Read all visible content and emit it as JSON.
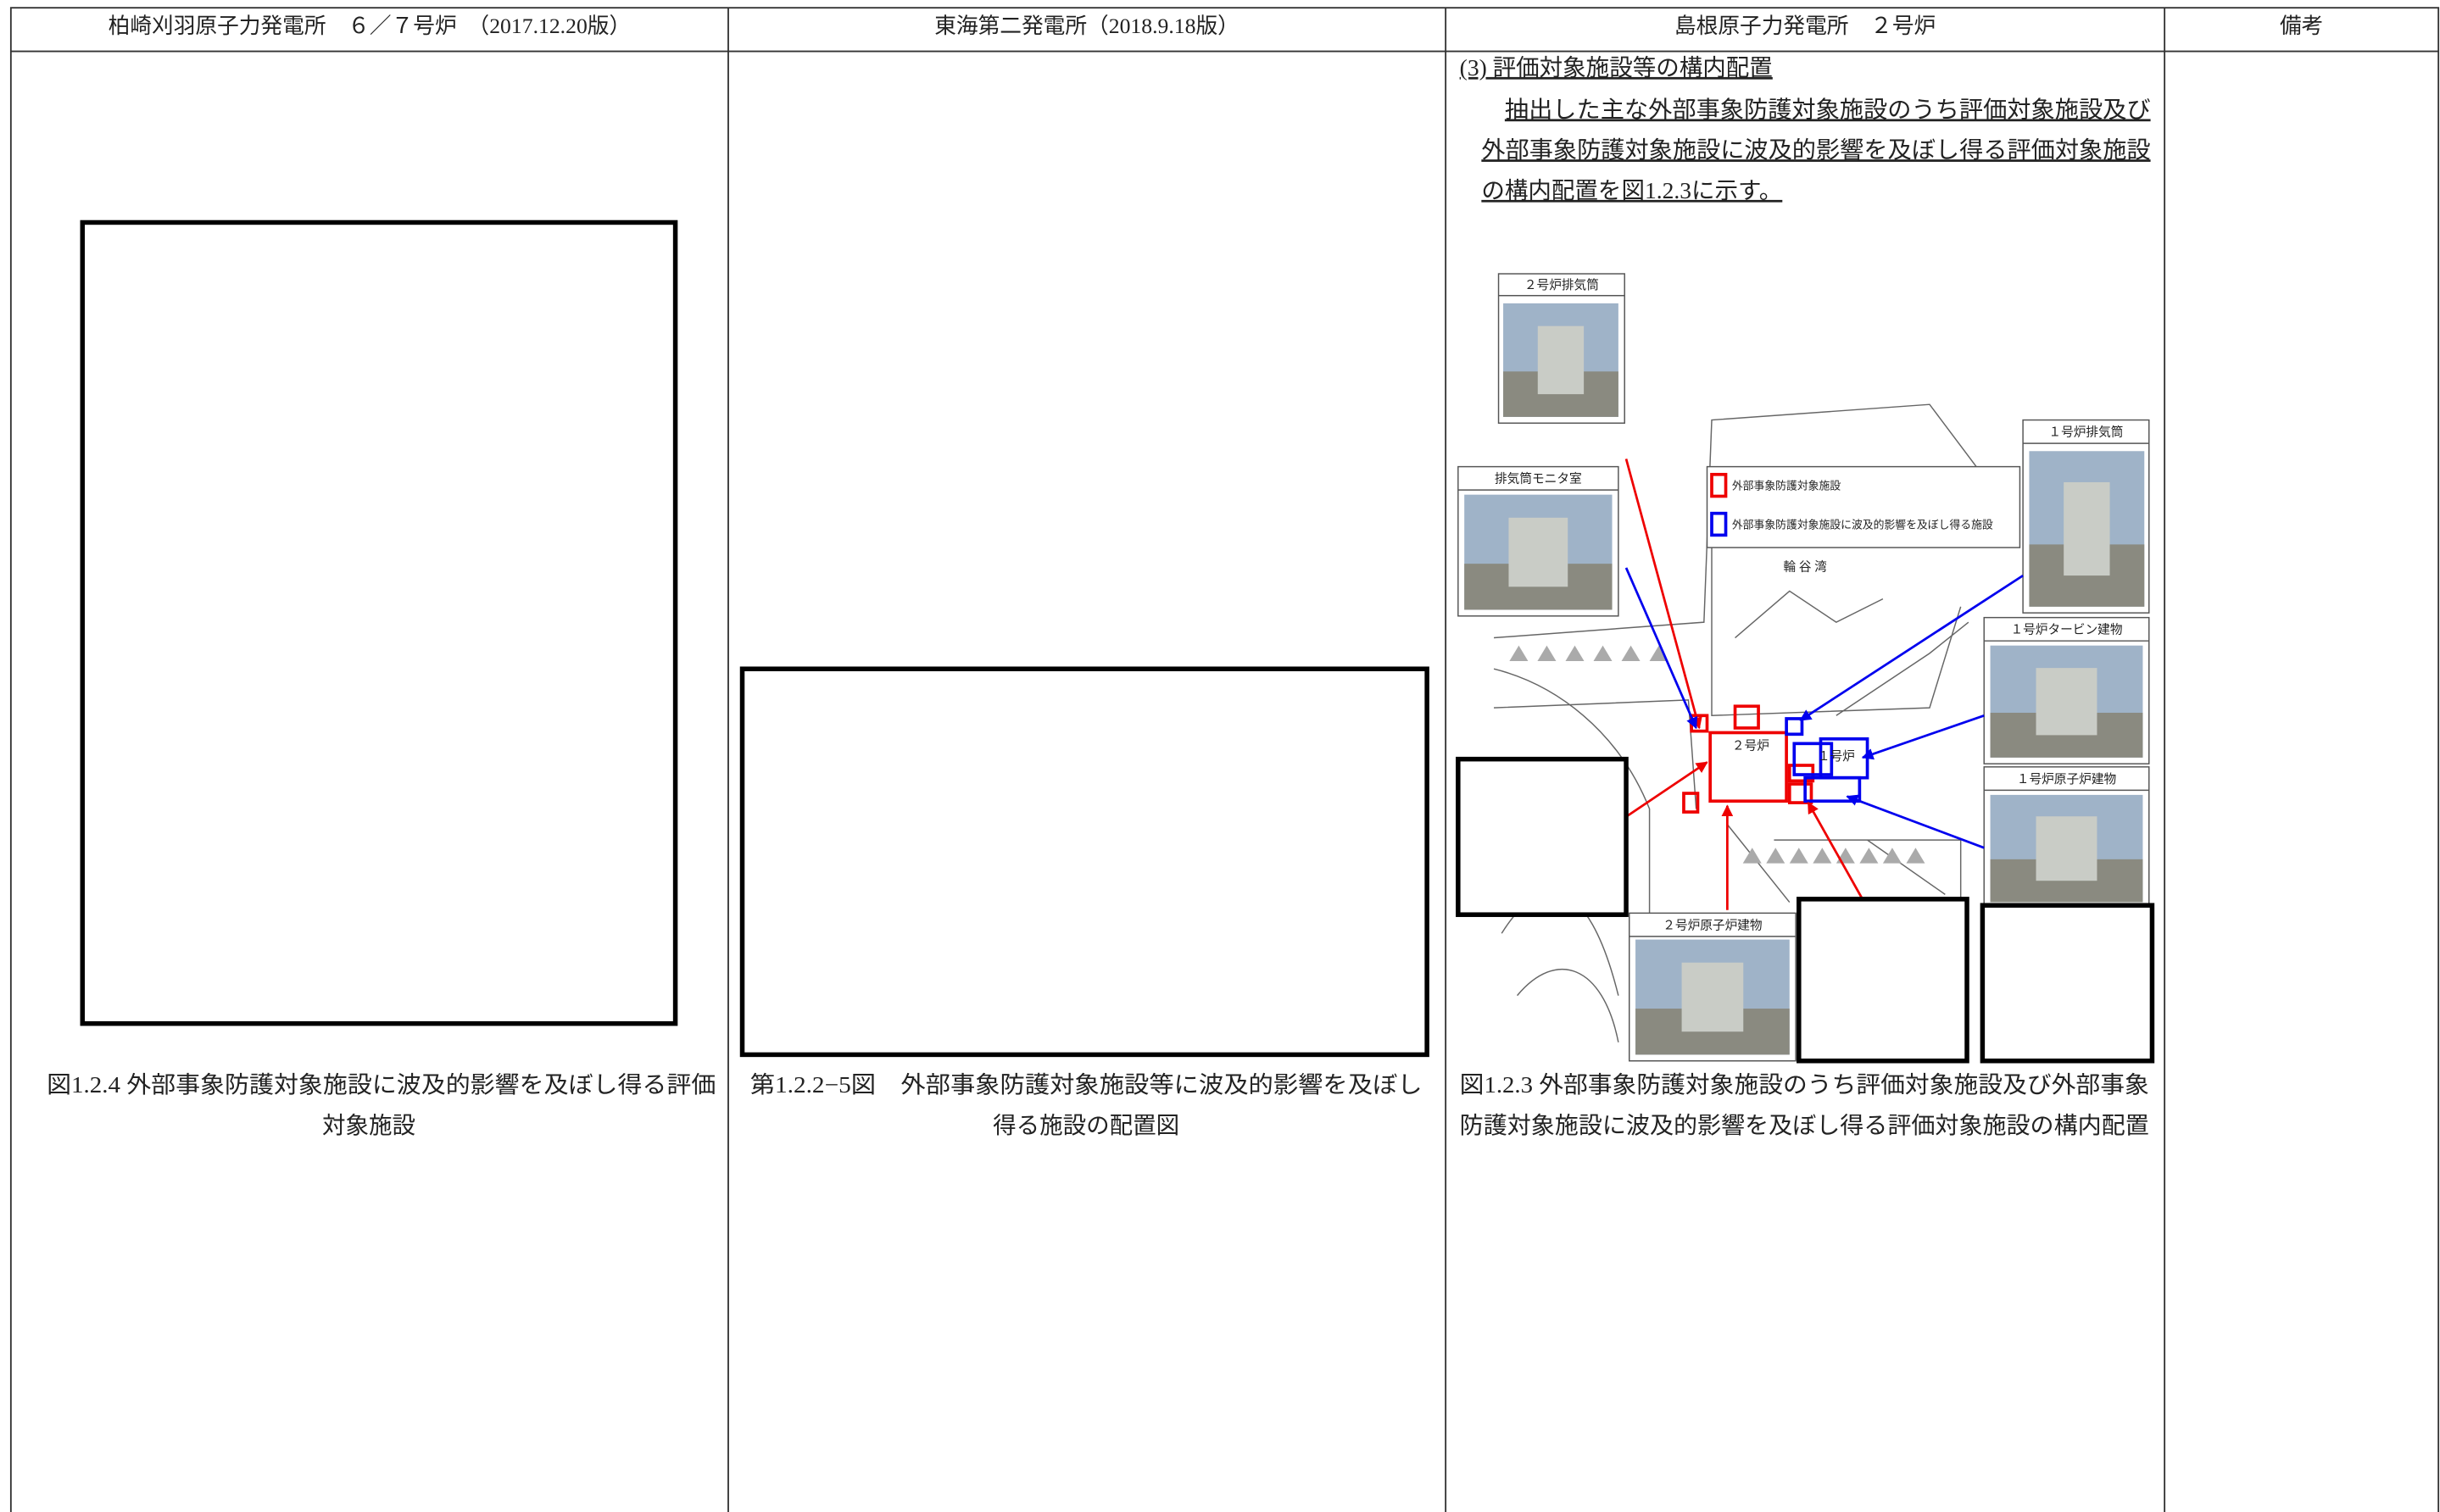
{
  "table": {
    "header": [
      "柏崎刈羽原子力発電所　６／７号炉　（2017.12.20版）",
      "東海第二発電所（2018.9.18版）",
      "島根原子力発電所　２号炉",
      "備考"
    ],
    "col1": {
      "caption": [
        "図1.2.4 外部事象防護対象施設に波及的影響を及ぼし得る評価",
        "対象施設"
      ]
    },
    "col2": {
      "caption": [
        "第1.2.2−5図　外部事象防護対象施設等に波及的影響を及ぼし",
        "得る施設の配置図"
      ]
    },
    "col3": {
      "heading": "(3) 評価対象施設等の構内配置",
      "paragraph": [
        "抽出した主な外部事象防護対象施設のうち評価対象施設及び",
        "外部事象防護対象施設に波及的影響を及ぼし得る評価対象施設",
        "の構内配置を図1.2.3に示す。"
      ],
      "figure": {
        "labels": [
          "２号炉排気筒",
          "１号炉排気筒",
          "排気筒モニタ室",
          "１号炉タービン建物",
          "１号炉原子炉建物",
          "２号炉原子炉建物"
        ],
        "legend": [
          "外部事象防護対象施設",
          "外部事象防護対象施設に波及的影響を及ぼし得る施設"
        ],
        "bay": "輪 谷 湾",
        "units": [
          "２号炉",
          "１号炉"
        ]
      },
      "caption": [
        "図1.2.3 外部事象防護対象施設のうち評価対象施設及び外部事象",
        "防護対象施設に波及的影響を及ぼし得る評価対象施設の構内配置"
      ]
    }
  }
}
